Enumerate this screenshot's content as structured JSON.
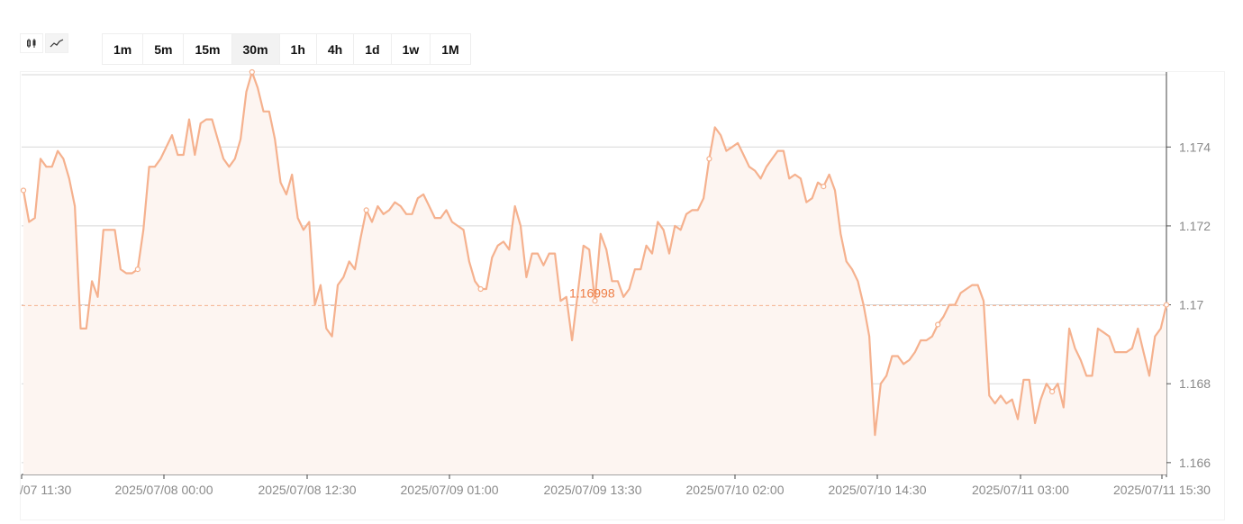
{
  "toolbar": {
    "chart_types": [
      {
        "icon": "candlestick-icon",
        "active": false
      },
      {
        "icon": "line-chart-icon",
        "active": true
      }
    ],
    "intervals": [
      "1m",
      "5m",
      "15m",
      "30m",
      "1h",
      "4h",
      "1d",
      "1w",
      "1M"
    ],
    "active_interval": "30m"
  },
  "colors": {
    "line": "#f5b18e",
    "fill": "#fdf5f1",
    "current_price_label": "#ee7d45",
    "grid": "#d7d7d7",
    "axis_text": "#8a8a8a"
  },
  "chart_data": {
    "type": "area",
    "title": "",
    "xlabel": "",
    "ylabel": "",
    "ylim": [
      1.1657,
      1.1759
    ],
    "y_ticks": [
      1.166,
      1.168,
      1.17,
      1.172,
      1.174
    ],
    "y_tick_labels": [
      "1.166",
      "1.168",
      "1.17",
      "1.172",
      "1.174"
    ],
    "x_tick_labels": [
      "/07 11:30",
      "2025/07/08 00:00",
      "2025/07/08 12:30",
      "2025/07/09 01:00",
      "2025/07/09 13:30",
      "2025/07/10 02:00",
      "2025/07/10 14:30",
      "2025/07/11 03:00",
      "2025/07/11 15:30"
    ],
    "current_price": 1.16998,
    "current_price_label": "1.16998",
    "grid": true,
    "series": [
      {
        "values": [
          1.1729,
          1.1721,
          1.1722,
          1.1737,
          1.1735,
          1.1735,
          1.1739,
          1.1737,
          1.1732,
          1.1725,
          1.1694,
          1.1694,
          1.1706,
          1.1702,
          1.1719,
          1.1719,
          1.1719,
          1.1709,
          1.1708,
          1.1708,
          1.1709,
          1.1719,
          1.1735,
          1.1735,
          1.1737,
          1.174,
          1.1743,
          1.1738,
          1.1738,
          1.1747,
          1.1738,
          1.1746,
          1.1747,
          1.1747,
          1.1742,
          1.1737,
          1.1735,
          1.1737,
          1.1742,
          1.1754,
          1.1759,
          1.1755,
          1.1749,
          1.1749,
          1.1742,
          1.1731,
          1.1728,
          1.1733,
          1.1722,
          1.1719,
          1.1721,
          1.17,
          1.1705,
          1.1694,
          1.1692,
          1.1705,
          1.1707,
          1.1711,
          1.1709,
          1.1717,
          1.1724,
          1.1721,
          1.1725,
          1.1723,
          1.1724,
          1.1726,
          1.1725,
          1.1723,
          1.1723,
          1.1727,
          1.1728,
          1.1725,
          1.1722,
          1.1722,
          1.1724,
          1.1721,
          1.172,
          1.1719,
          1.1711,
          1.1706,
          1.1704,
          1.1704,
          1.1712,
          1.1715,
          1.1716,
          1.1714,
          1.1725,
          1.172,
          1.1707,
          1.1713,
          1.1713,
          1.171,
          1.1713,
          1.1713,
          1.1701,
          1.1702,
          1.1691,
          1.1703,
          1.1715,
          1.1714,
          1.1701,
          1.1718,
          1.1714,
          1.1706,
          1.1706,
          1.1702,
          1.1704,
          1.1709,
          1.1709,
          1.1715,
          1.1713,
          1.1721,
          1.1719,
          1.1713,
          1.172,
          1.1719,
          1.1723,
          1.1724,
          1.1724,
          1.1727,
          1.1737,
          1.1745,
          1.1743,
          1.1739,
          1.174,
          1.1741,
          1.1738,
          1.1735,
          1.1734,
          1.1732,
          1.1735,
          1.1737,
          1.1739,
          1.1739,
          1.1732,
          1.1733,
          1.1732,
          1.1726,
          1.1727,
          1.1731,
          1.173,
          1.1733,
          1.1729,
          1.1718,
          1.1711,
          1.1709,
          1.1706,
          1.17,
          1.1692,
          1.1667,
          1.168,
          1.1682,
          1.1687,
          1.1687,
          1.1685,
          1.1686,
          1.1688,
          1.1691,
          1.1691,
          1.1692,
          1.1695,
          1.1697,
          1.17,
          1.17,
          1.1703,
          1.1704,
          1.1705,
          1.1705,
          1.1701,
          1.1677,
          1.1675,
          1.1677,
          1.1675,
          1.1676,
          1.1671,
          1.1681,
          1.1681,
          1.167,
          1.1676,
          1.168,
          1.1678,
          1.168,
          1.1674,
          1.1694,
          1.1689,
          1.1686,
          1.1682,
          1.1682,
          1.1694,
          1.1693,
          1.1692,
          1.1688,
          1.1688,
          1.1688,
          1.1689,
          1.1694,
          1.1688,
          1.1682,
          1.1692,
          1.1694,
          1.17
        ]
      }
    ]
  }
}
